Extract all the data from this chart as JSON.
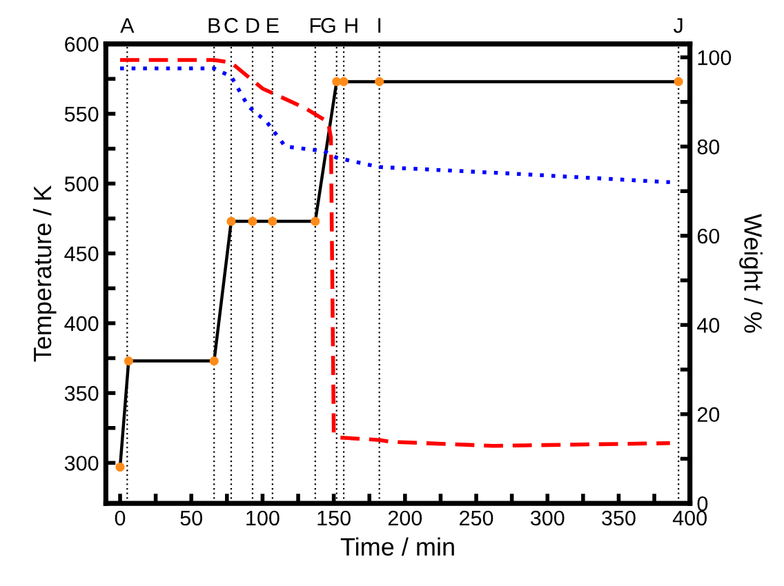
{
  "chart_data": {
    "type": "line",
    "xlabel": "Time / min",
    "ylabel": "Temperature / K",
    "y2label": "Weight / %",
    "xlim": [
      -10,
      400
    ],
    "ylim": [
      271,
      600
    ],
    "y2lim": [
      0,
      103
    ],
    "xticks": [
      0,
      {
        "value": 25,
        "label": null
      },
      50,
      {
        "value": 75,
        "label": null
      },
      100,
      {
        "value": 125,
        "label": null
      },
      150,
      {
        "value": 175,
        "label": null
      },
      200,
      {
        "value": 225,
        "label": null
      },
      250,
      {
        "value": 275,
        "label": null
      },
      300,
      {
        "value": 325,
        "label": null
      },
      350,
      {
        "value": 375,
        "label": null
      },
      400
    ],
    "yticks": [
      300,
      {
        "value": 325,
        "label": null
      },
      350,
      {
        "value": 375,
        "label": null
      },
      400,
      {
        "value": 425,
        "label": null
      },
      450,
      {
        "value": 475,
        "label": null
      },
      500,
      {
        "value": 525,
        "label": null
      },
      550,
      {
        "value": 575,
        "label": null
      },
      600
    ],
    "y2ticks": [
      0,
      {
        "value": 10,
        "label": null
      },
      20,
      {
        "value": 30,
        "label": null
      },
      40,
      {
        "value": 50,
        "label": null
      },
      60,
      {
        "value": 70,
        "label": null
      },
      80,
      {
        "value": 90,
        "label": null
      },
      100
    ],
    "grid": false,
    "legend": false,
    "series": [
      {
        "color": "#000000",
        "marker": "circle",
        "line_style": "solid",
        "x": [
          0,
          6,
          66,
          78,
          93,
          107,
          137,
          152,
          157,
          182,
          392
        ],
        "values": [
          297,
          373,
          373,
          473,
          473,
          473,
          473,
          573,
          573,
          573,
          573
        ],
        "colors": [
          "#ff8c1a",
          "#ff8c1a",
          "#ff8c1a",
          "#ff8c1a",
          "#ff8c1a",
          "#ff8c1a",
          "#ff8c1a",
          "#ff8c1a",
          "#ff8c1a",
          "#ff8c1a",
          "#ff8c1a"
        ]
      },
      {
        "axis": "y2",
        "color": "#0000ff",
        "marker": "none",
        "line_style": "dotted",
        "x": [
          0,
          66,
          78,
          90,
          103,
          116,
          143,
          152,
          182,
          271,
          386
        ],
        "values": [
          97.5,
          97.5,
          95.7,
          89,
          85.5,
          80,
          79,
          77.5,
          75.4,
          74,
          72
        ]
      },
      {
        "axis": "y2",
        "color": "#ff0000",
        "marker": "none",
        "line_style": "dashed",
        "x": [
          0,
          66,
          78,
          100,
          130,
          146,
          148,
          150,
          152,
          182,
          190,
          262,
          386
        ],
        "values": [
          99.4,
          99.4,
          98.8,
          93,
          88.6,
          85.5,
          82,
          15.7,
          14.8,
          14.2,
          13.8,
          12.9,
          13.5
        ]
      }
    ],
    "ref_lines": [
      {
        "axis": "x",
        "value": 5,
        "label": "A"
      },
      {
        "axis": "x",
        "value": 66,
        "label": "B"
      },
      {
        "axis": "x",
        "value": 78,
        "label": "C"
      },
      {
        "axis": "x",
        "value": 93,
        "label": "D"
      },
      {
        "axis": "x",
        "value": 107,
        "label": "E"
      },
      {
        "axis": "x",
        "value": 137,
        "label": "F"
      },
      {
        "axis": "x",
        "value": 152,
        "label": "G"
      },
      {
        "axis": "x",
        "value": 157,
        "label": "H"
      },
      {
        "axis": "x",
        "value": 182,
        "label": "I"
      },
      {
        "axis": "x",
        "value": 392,
        "label": "J"
      }
    ]
  }
}
